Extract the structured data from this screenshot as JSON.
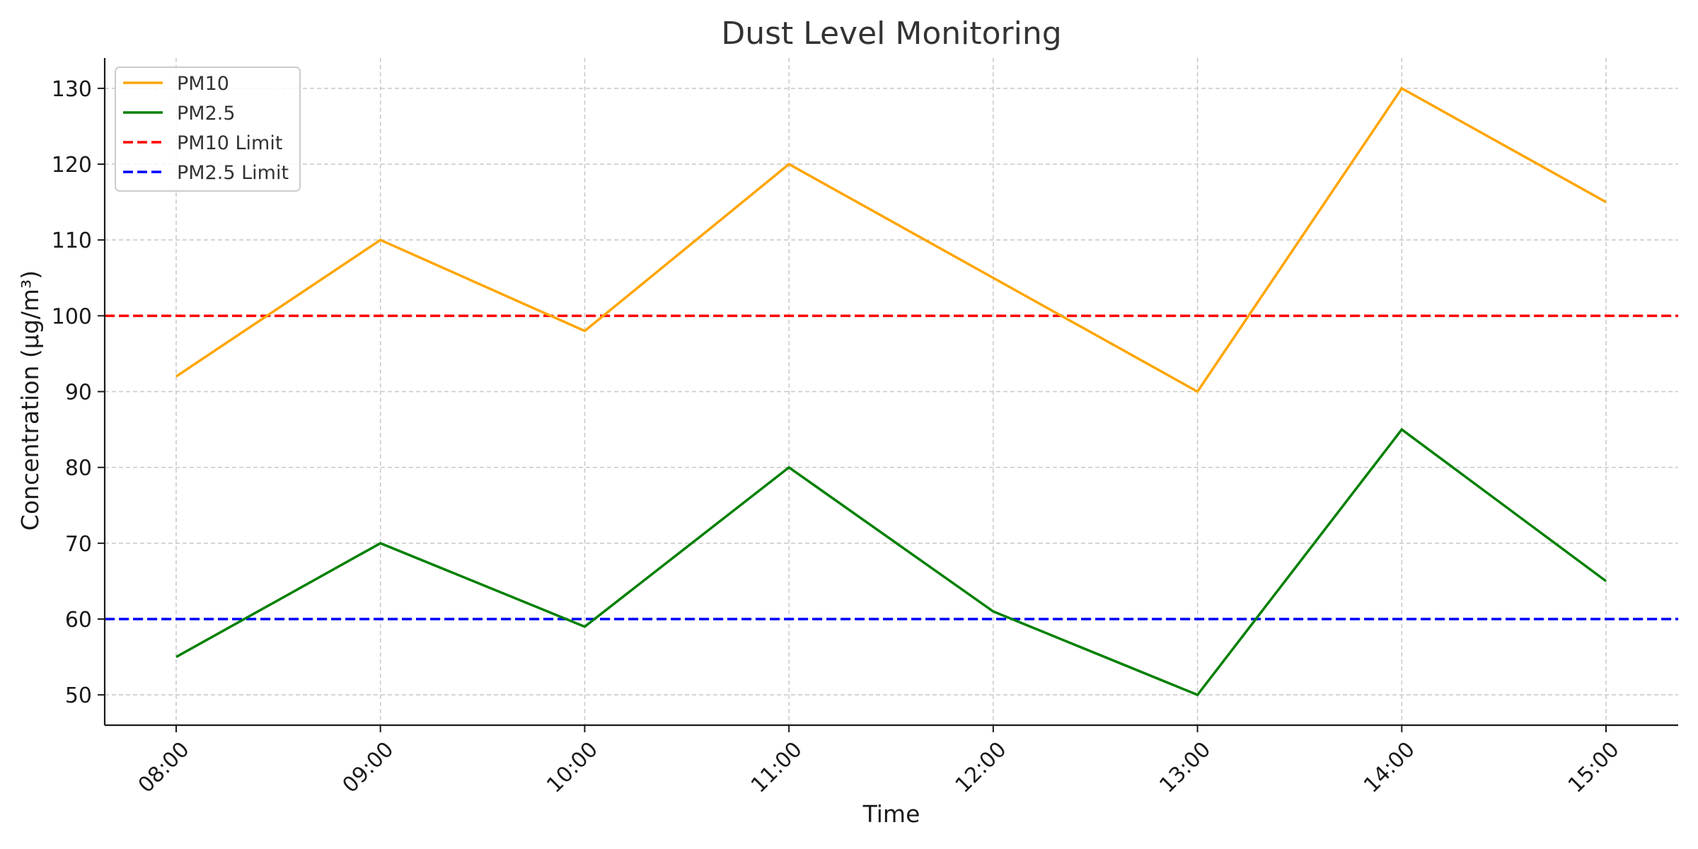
{
  "chart_data": {
    "type": "line",
    "title": "Dust Level Monitoring",
    "xlabel": "Time",
    "ylabel": "Concentration (µg/m³)",
    "categories": [
      "08:00",
      "09:00",
      "10:00",
      "11:00",
      "12:00",
      "13:00",
      "14:00",
      "15:00"
    ],
    "yticks": [
      50,
      60,
      70,
      80,
      90,
      100,
      110,
      120,
      130
    ],
    "ylim": [
      46,
      134
    ],
    "grid": true,
    "legend_position": "top-left",
    "series": [
      {
        "name": "PM10",
        "color": "#ffa500",
        "style": "solid",
        "values": [
          92,
          110,
          98,
          120,
          105,
          90,
          130,
          115
        ]
      },
      {
        "name": "PM2.5",
        "color": "#008000",
        "style": "solid",
        "values": [
          55,
          70,
          59,
          80,
          61,
          50,
          85,
          65
        ]
      }
    ],
    "thresholds": [
      {
        "name": "PM10 Limit",
        "color": "#ff0000",
        "style": "dashed",
        "value": 100
      },
      {
        "name": "PM2.5 Limit",
        "color": "#0000ff",
        "style": "dashed",
        "value": 60
      }
    ]
  }
}
